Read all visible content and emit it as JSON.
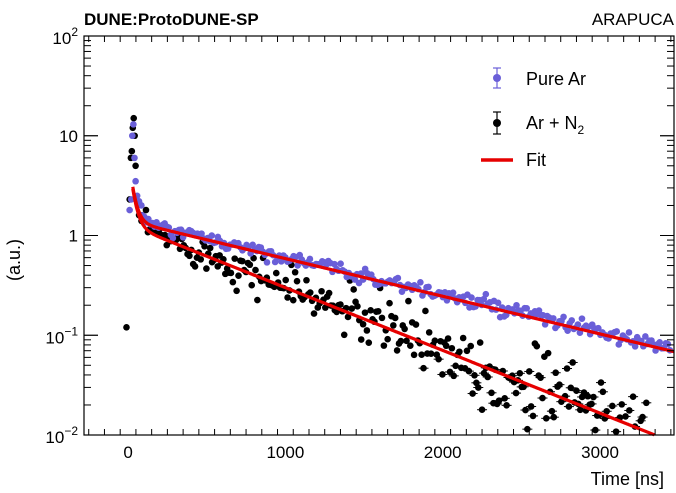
{
  "chart_data": {
    "type": "scatter",
    "title": "DUNE:ProtoDUNE-SP",
    "label_right": "ARAPUCA",
    "xlabel": "Time [ns]",
    "ylabel": "(a.u.)",
    "xlim": [
      -280,
      3470
    ],
    "ylim": [
      0.01,
      100
    ],
    "ylog": true,
    "xticks": [
      0,
      1000,
      2000,
      3000
    ],
    "ytick_labels": [
      {
        "value": 0.01,
        "base": "10",
        "exp": "−2"
      },
      {
        "value": 0.1,
        "base": "10",
        "exp": "−1"
      },
      {
        "value": 1,
        "base": "1",
        "exp": ""
      },
      {
        "value": 10,
        "base": "10",
        "exp": ""
      },
      {
        "value": 100,
        "base": "10",
        "exp": "2"
      }
    ],
    "legend": {
      "placement": "top-right",
      "entries": [
        {
          "label": "Pure Ar",
          "marker": "point-errorbar",
          "color": "#6a5fd8"
        },
        {
          "label": "Ar + N",
          "sub": "2",
          "marker": "point-errorbar",
          "color": "#000000"
        },
        {
          "label": "Fit",
          "marker": "line",
          "color": "#e60000"
        }
      ]
    },
    "series": [
      {
        "name": "Pure Ar",
        "color": "#6a5fd8",
        "peak_points": [
          [
            10,
            1.8
          ],
          [
            20,
            2.3
          ],
          [
            27,
            10
          ],
          [
            34,
            13
          ],
          [
            41,
            6
          ],
          [
            48,
            3.5
          ],
          [
            58,
            2.5
          ],
          [
            70,
            2.2
          ],
          [
            85,
            2.0
          ]
        ],
        "tail_model": {
          "fast_amp": 5,
          "fast_tau": 28,
          "slow_amp": 1.45,
          "slow_tau": 1150,
          "x_start": 90,
          "x_end": 3450,
          "step": 13
        }
      },
      {
        "name": "Ar + N2",
        "color": "#000000",
        "peak_points": [
          [
            -10,
            0.12
          ],
          [
            10,
            2.3
          ],
          [
            18,
            6
          ],
          [
            24,
            7
          ],
          [
            30,
            12
          ],
          [
            36,
            15
          ],
          [
            42,
            10
          ],
          [
            48,
            5
          ],
          [
            58,
            2.2
          ],
          [
            70,
            1.6
          ],
          [
            85,
            1.4
          ]
        ],
        "tail_model": {
          "fast_amp": 5,
          "fast_tau": 28,
          "slow_amp": 1.35,
          "slow_tau": 680,
          "x_start": 90,
          "x_end": 3300,
          "step": 12
        }
      }
    ],
    "fit_curves": [
      {
        "fast_amp": 5,
        "fast_tau": 28,
        "slow_amp": 1.4,
        "slow_tau": 1150,
        "x_start": 30,
        "x_end": 3470
      },
      {
        "fast_amp": 5,
        "fast_tau": 28,
        "slow_amp": 1.28,
        "slow_tau": 690,
        "x_start": 30,
        "x_end": 3470
      }
    ],
    "fit_color": "#e60000",
    "grid": false
  }
}
